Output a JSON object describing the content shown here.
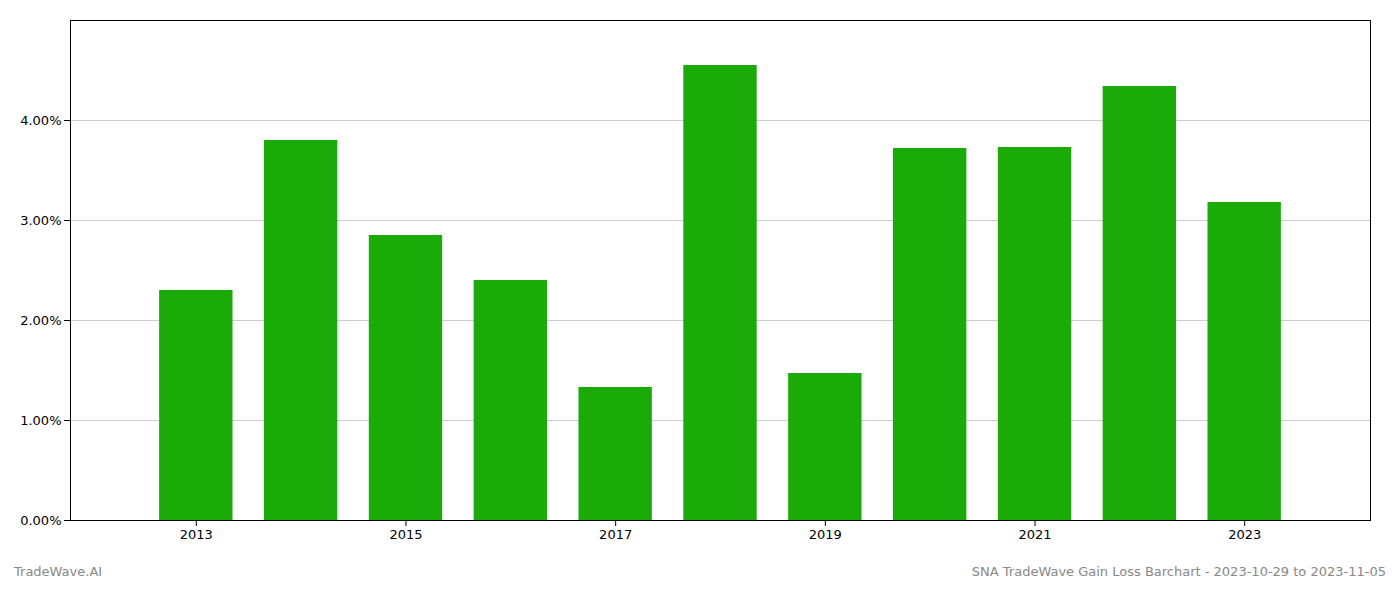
{
  "chart_data": {
    "type": "bar",
    "x": [
      2013,
      2014,
      2015,
      2016,
      2017,
      2018,
      2019,
      2020,
      2021,
      2022,
      2023
    ],
    "values": [
      0.023,
      0.038,
      0.0285,
      0.024,
      0.0133,
      0.0455,
      0.0147,
      0.0372,
      0.0373,
      0.0434,
      0.0318
    ],
    "color": "#1aab08",
    "xlim": [
      2011.8,
      2024.2
    ],
    "xticks": [
      2013,
      2015,
      2017,
      2019,
      2021,
      2023
    ],
    "ylim": [
      0,
      0.05
    ],
    "yticks": [
      {
        "value": 0.0,
        "label": "0.00%"
      },
      {
        "value": 0.01,
        "label": "1.00%"
      },
      {
        "value": 0.02,
        "label": "2.00%"
      },
      {
        "value": 0.03,
        "label": "3.00%"
      },
      {
        "value": 0.04,
        "label": "4.00%"
      }
    ],
    "grid": true,
    "annotations": [
      "TradeWave.AI",
      "SNA TradeWave Gain Loss Barchart - 2023-10-29 to 2023-11-05"
    ]
  }
}
